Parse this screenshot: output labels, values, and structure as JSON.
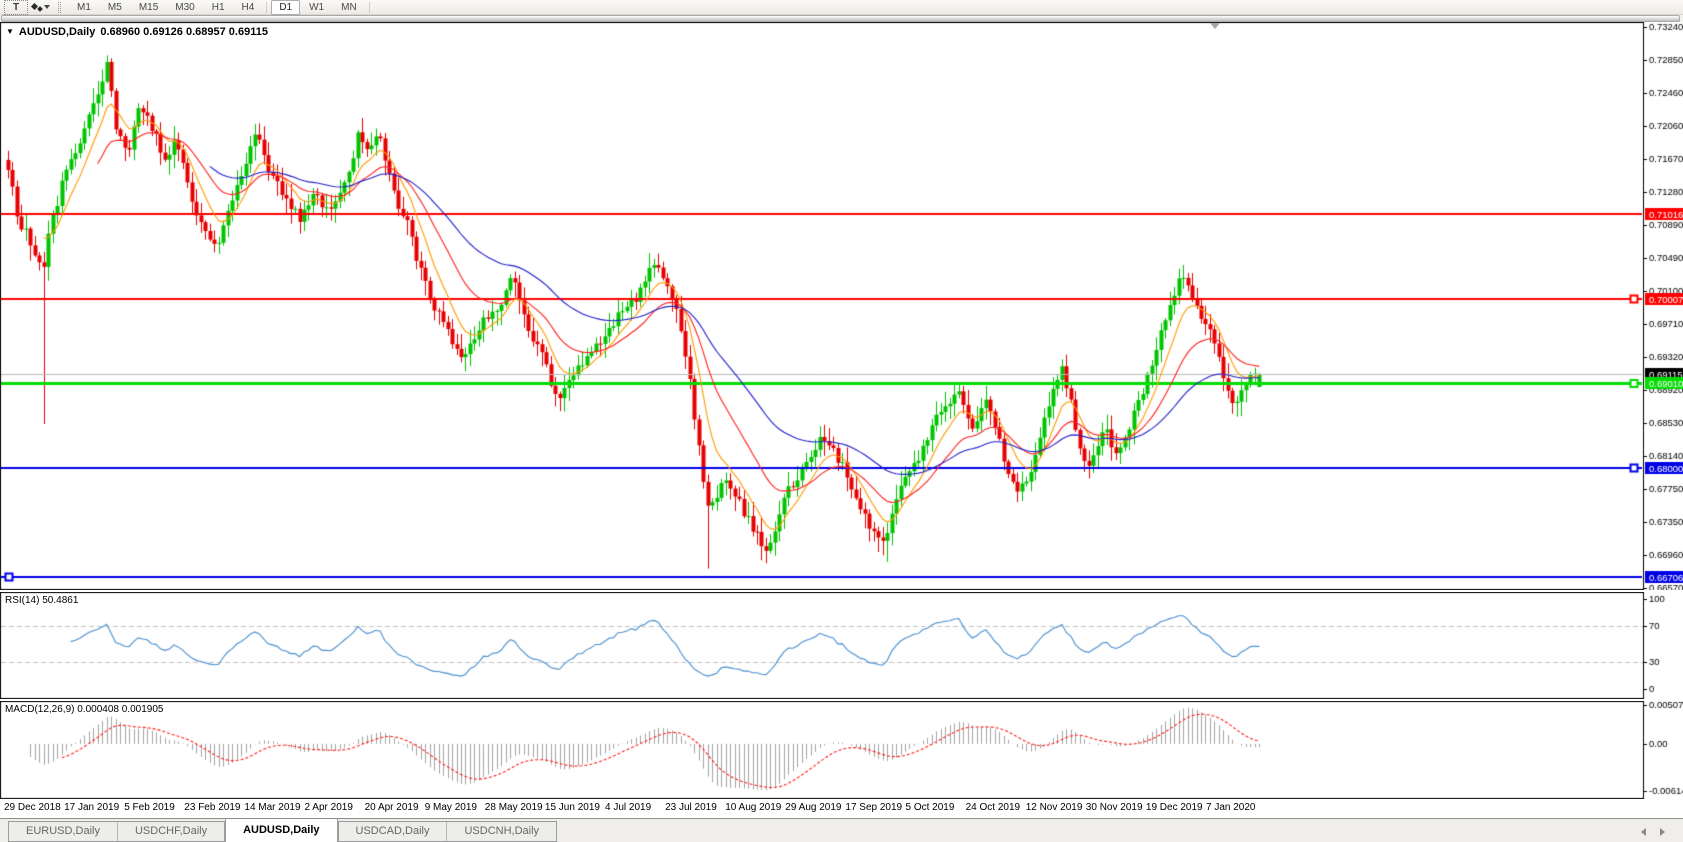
{
  "toolbar": {
    "text_tool_label": "T",
    "timeframes": [
      "M1",
      "M5",
      "M15",
      "M30",
      "H1",
      "H4",
      "D1",
      "W1",
      "MN"
    ],
    "active_timeframe": "D1"
  },
  "chart": {
    "collapse_icon": "▼",
    "title_symbol": "AUDUSD,Daily",
    "ohlc_text": "0.68960 0.69126 0.68957 0.69115"
  },
  "rsi_panel": {
    "label": "RSI(14) 50.4861"
  },
  "macd_panel": {
    "label": "MACD(12,26,9) 0.000408 0.001905"
  },
  "tab_bar": {
    "tabs": [
      {
        "label": "EURUSD,Daily",
        "active": false
      },
      {
        "label": "USDCHF,Daily",
        "active": false
      },
      {
        "label": "AUDUSD,Daily",
        "active": true
      },
      {
        "label": "USDCAD,Daily",
        "active": false
      },
      {
        "label": "USDCNH,Daily",
        "active": false
      }
    ]
  },
  "chart_data": {
    "type": "candlestick",
    "symbol": "AUDUSD",
    "timeframe": "Daily",
    "current_bar": {
      "open": 0.6896,
      "high": 0.69126,
      "low": 0.68957,
      "close": 0.69115
    },
    "ylim": [
      0.6657,
      0.7324
    ],
    "y_ticks": [
      0.7324,
      0.7285,
      0.7246,
      0.7206,
      0.7167,
      0.7128,
      0.7089,
      0.7049,
      0.701,
      0.6971,
      0.6932,
      0.6892,
      0.6853,
      0.6814,
      0.6775,
      0.6735,
      0.6696,
      0.6657
    ],
    "x_dates": [
      "29 Dec 2018",
      "17 Jan 2019",
      "5 Feb 2019",
      "23 Feb 2019",
      "14 Mar 2019",
      "2 Apr 2019",
      "20 Apr 2019",
      "9 May 2019",
      "28 May 2019",
      "15 Jun 2019",
      "4 Jul 2019",
      "23 Jul 2019",
      "10 Aug 2019",
      "29 Aug 2019",
      "17 Sep 2019",
      "5 Oct 2019",
      "24 Oct 2019",
      "12 Nov 2019",
      "30 Nov 2019",
      "19 Dec 2019",
      "7 Jan 2020"
    ],
    "colors": {
      "up": "#00c400",
      "down": "#e60000",
      "background": "#ffffff",
      "border": "#000000"
    },
    "horizontal_lines": [
      {
        "price": 0.71016,
        "label": "0.71016",
        "color": "#ff0000",
        "width": 2,
        "handle": "none"
      },
      {
        "price": 0.70007,
        "label": "0.70007",
        "color": "#ff0000",
        "width": 2,
        "handle": "right"
      },
      {
        "price": 0.69115,
        "label": "0.69115",
        "color": "#b8b8b8",
        "width": 1,
        "label_bg": "#000000",
        "current_price": true,
        "handle": "none"
      },
      {
        "price": 0.6901,
        "label": "0.69010",
        "color": "#00dd00",
        "width": 3,
        "handle": "right"
      },
      {
        "price": 0.68,
        "label": "0.68000",
        "color": "#0000e6",
        "width": 2,
        "handle": "right"
      },
      {
        "price": 0.66706,
        "label": "0.66706",
        "color": "#0000e6",
        "width": 2,
        "handle": "left"
      }
    ],
    "moving_averages": [
      {
        "period": 8,
        "color": "#ff9a00"
      },
      {
        "period": 20,
        "color": "#ff2020"
      },
      {
        "period": 45,
        "color": "#2222cc"
      }
    ],
    "num_bars": 280,
    "price_path_anchors": [
      [
        0,
        0.716
      ],
      [
        0.008,
        0.7095
      ],
      [
        0.018,
        0.707
      ],
      [
        0.028,
        0.7035
      ],
      [
        0.032,
        0.708
      ],
      [
        0.045,
        0.7145
      ],
      [
        0.06,
        0.7195
      ],
      [
        0.075,
        0.726
      ],
      [
        0.08,
        0.7285
      ],
      [
        0.085,
        0.721
      ],
      [
        0.095,
        0.717
      ],
      [
        0.105,
        0.7235
      ],
      [
        0.115,
        0.7205
      ],
      [
        0.125,
        0.7165
      ],
      [
        0.135,
        0.719
      ],
      [
        0.148,
        0.7105
      ],
      [
        0.16,
        0.7075
      ],
      [
        0.167,
        0.7055
      ],
      [
        0.175,
        0.71
      ],
      [
        0.185,
        0.7145
      ],
      [
        0.197,
        0.72
      ],
      [
        0.21,
        0.7145
      ],
      [
        0.222,
        0.712
      ],
      [
        0.233,
        0.7095
      ],
      [
        0.245,
        0.7125
      ],
      [
        0.258,
        0.7105
      ],
      [
        0.27,
        0.714
      ],
      [
        0.28,
        0.7195
      ],
      [
        0.29,
        0.718
      ],
      [
        0.296,
        0.7195
      ],
      [
        0.31,
        0.712
      ],
      [
        0.32,
        0.7085
      ],
      [
        0.33,
        0.703
      ],
      [
        0.34,
        0.699
      ],
      [
        0.352,
        0.696
      ],
      [
        0.364,
        0.693
      ],
      [
        0.375,
        0.6965
      ],
      [
        0.385,
        0.6985
      ],
      [
        0.395,
        0.6995
      ],
      [
        0.402,
        0.703
      ],
      [
        0.412,
        0.6985
      ],
      [
        0.42,
        0.695
      ],
      [
        0.427,
        0.6935
      ],
      [
        0.439,
        0.6875
      ],
      [
        0.45,
        0.6905
      ],
      [
        0.463,
        0.6935
      ],
      [
        0.472,
        0.695
      ],
      [
        0.479,
        0.696
      ],
      [
        0.49,
        0.6985
      ],
      [
        0.503,
        0.7
      ],
      [
        0.515,
        0.7045
      ],
      [
        0.525,
        0.702
      ],
      [
        0.535,
        0.699
      ],
      [
        0.545,
        0.69
      ],
      [
        0.551,
        0.683
      ],
      [
        0.559,
        0.675
      ],
      [
        0.568,
        0.6775
      ],
      [
        0.575,
        0.678
      ],
      [
        0.583,
        0.676
      ],
      [
        0.591,
        0.674
      ],
      [
        0.6,
        0.6715
      ],
      [
        0.607,
        0.6705
      ],
      [
        0.615,
        0.674
      ],
      [
        0.623,
        0.677
      ],
      [
        0.631,
        0.679
      ],
      [
        0.639,
        0.681
      ],
      [
        0.648,
        0.683
      ],
      [
        0.655,
        0.6835
      ],
      [
        0.662,
        0.681
      ],
      [
        0.667,
        0.68
      ],
      [
        0.675,
        0.6775
      ],
      [
        0.683,
        0.6745
      ],
      [
        0.69,
        0.6725
      ],
      [
        0.695,
        0.6715
      ],
      [
        0.701,
        0.672
      ],
      [
        0.708,
        0.675
      ],
      [
        0.714,
        0.678
      ],
      [
        0.722,
        0.68
      ],
      [
        0.73,
        0.682
      ],
      [
        0.738,
        0.6845
      ],
      [
        0.746,
        0.687
      ],
      [
        0.752,
        0.688
      ],
      [
        0.758,
        0.6895
      ],
      [
        0.764,
        0.687
      ],
      [
        0.77,
        0.685
      ],
      [
        0.776,
        0.6865
      ],
      [
        0.782,
        0.688
      ],
      [
        0.788,
        0.685
      ],
      [
        0.794,
        0.682
      ],
      [
        0.8,
        0.6795
      ],
      [
        0.806,
        0.677
      ],
      [
        0.812,
        0.6785
      ],
      [
        0.818,
        0.68
      ],
      [
        0.824,
        0.684
      ],
      [
        0.83,
        0.687
      ],
      [
        0.836,
        0.69
      ],
      [
        0.842,
        0.692
      ],
      [
        0.848,
        0.689
      ],
      [
        0.853,
        0.685
      ],
      [
        0.857,
        0.6825
      ],
      [
        0.861,
        0.68
      ],
      [
        0.865,
        0.681
      ],
      [
        0.869,
        0.682
      ],
      [
        0.873,
        0.684
      ],
      [
        0.877,
        0.6855
      ],
      [
        0.881,
        0.683
      ],
      [
        0.885,
        0.681
      ],
      [
        0.889,
        0.6825
      ],
      [
        0.893,
        0.684
      ],
      [
        0.899,
        0.686
      ],
      [
        0.905,
        0.688
      ],
      [
        0.911,
        0.691
      ],
      [
        0.917,
        0.694
      ],
      [
        0.923,
        0.697
      ],
      [
        0.929,
        0.7
      ],
      [
        0.937,
        0.703
      ],
      [
        0.943,
        0.701
      ],
      [
        0.949,
        0.699
      ],
      [
        0.955,
        0.6975
      ],
      [
        0.961,
        0.696
      ],
      [
        0.967,
        0.693
      ],
      [
        0.973,
        0.69
      ],
      [
        0.981,
        0.687
      ],
      [
        0.989,
        0.6905
      ],
      [
        1,
        0.69115
      ]
    ],
    "spike_lows": [
      [
        0.028,
        0.6852
      ],
      [
        0.559,
        0.668
      ],
      [
        0.701,
        0.6688
      ]
    ],
    "rsi": {
      "period": 14,
      "value": 50.4861,
      "color": "#4a90d0",
      "levels": [
        {
          "v": 100,
          "label": "100",
          "dashed": false
        },
        {
          "v": 70,
          "label": "70",
          "dashed": true
        },
        {
          "v": 30,
          "label": "30",
          "dashed": true
        },
        {
          "v": 0,
          "label": "0",
          "dashed": false
        }
      ]
    },
    "macd": {
      "fast": 12,
      "slow": 26,
      "signal": 9,
      "macd_value": 0.000408,
      "signal_value": 0.001905,
      "range": [
        -0.006148,
        0.005076
      ],
      "axis": [
        {
          "v": 0.005076,
          "label": "0.005076"
        },
        {
          "v": 0,
          "label": "0.00"
        },
        {
          "v": -0.006148,
          "label": "-0.006148"
        }
      ],
      "histogram_color": "#a4a4a4",
      "signal_color": "#ff2020"
    }
  }
}
